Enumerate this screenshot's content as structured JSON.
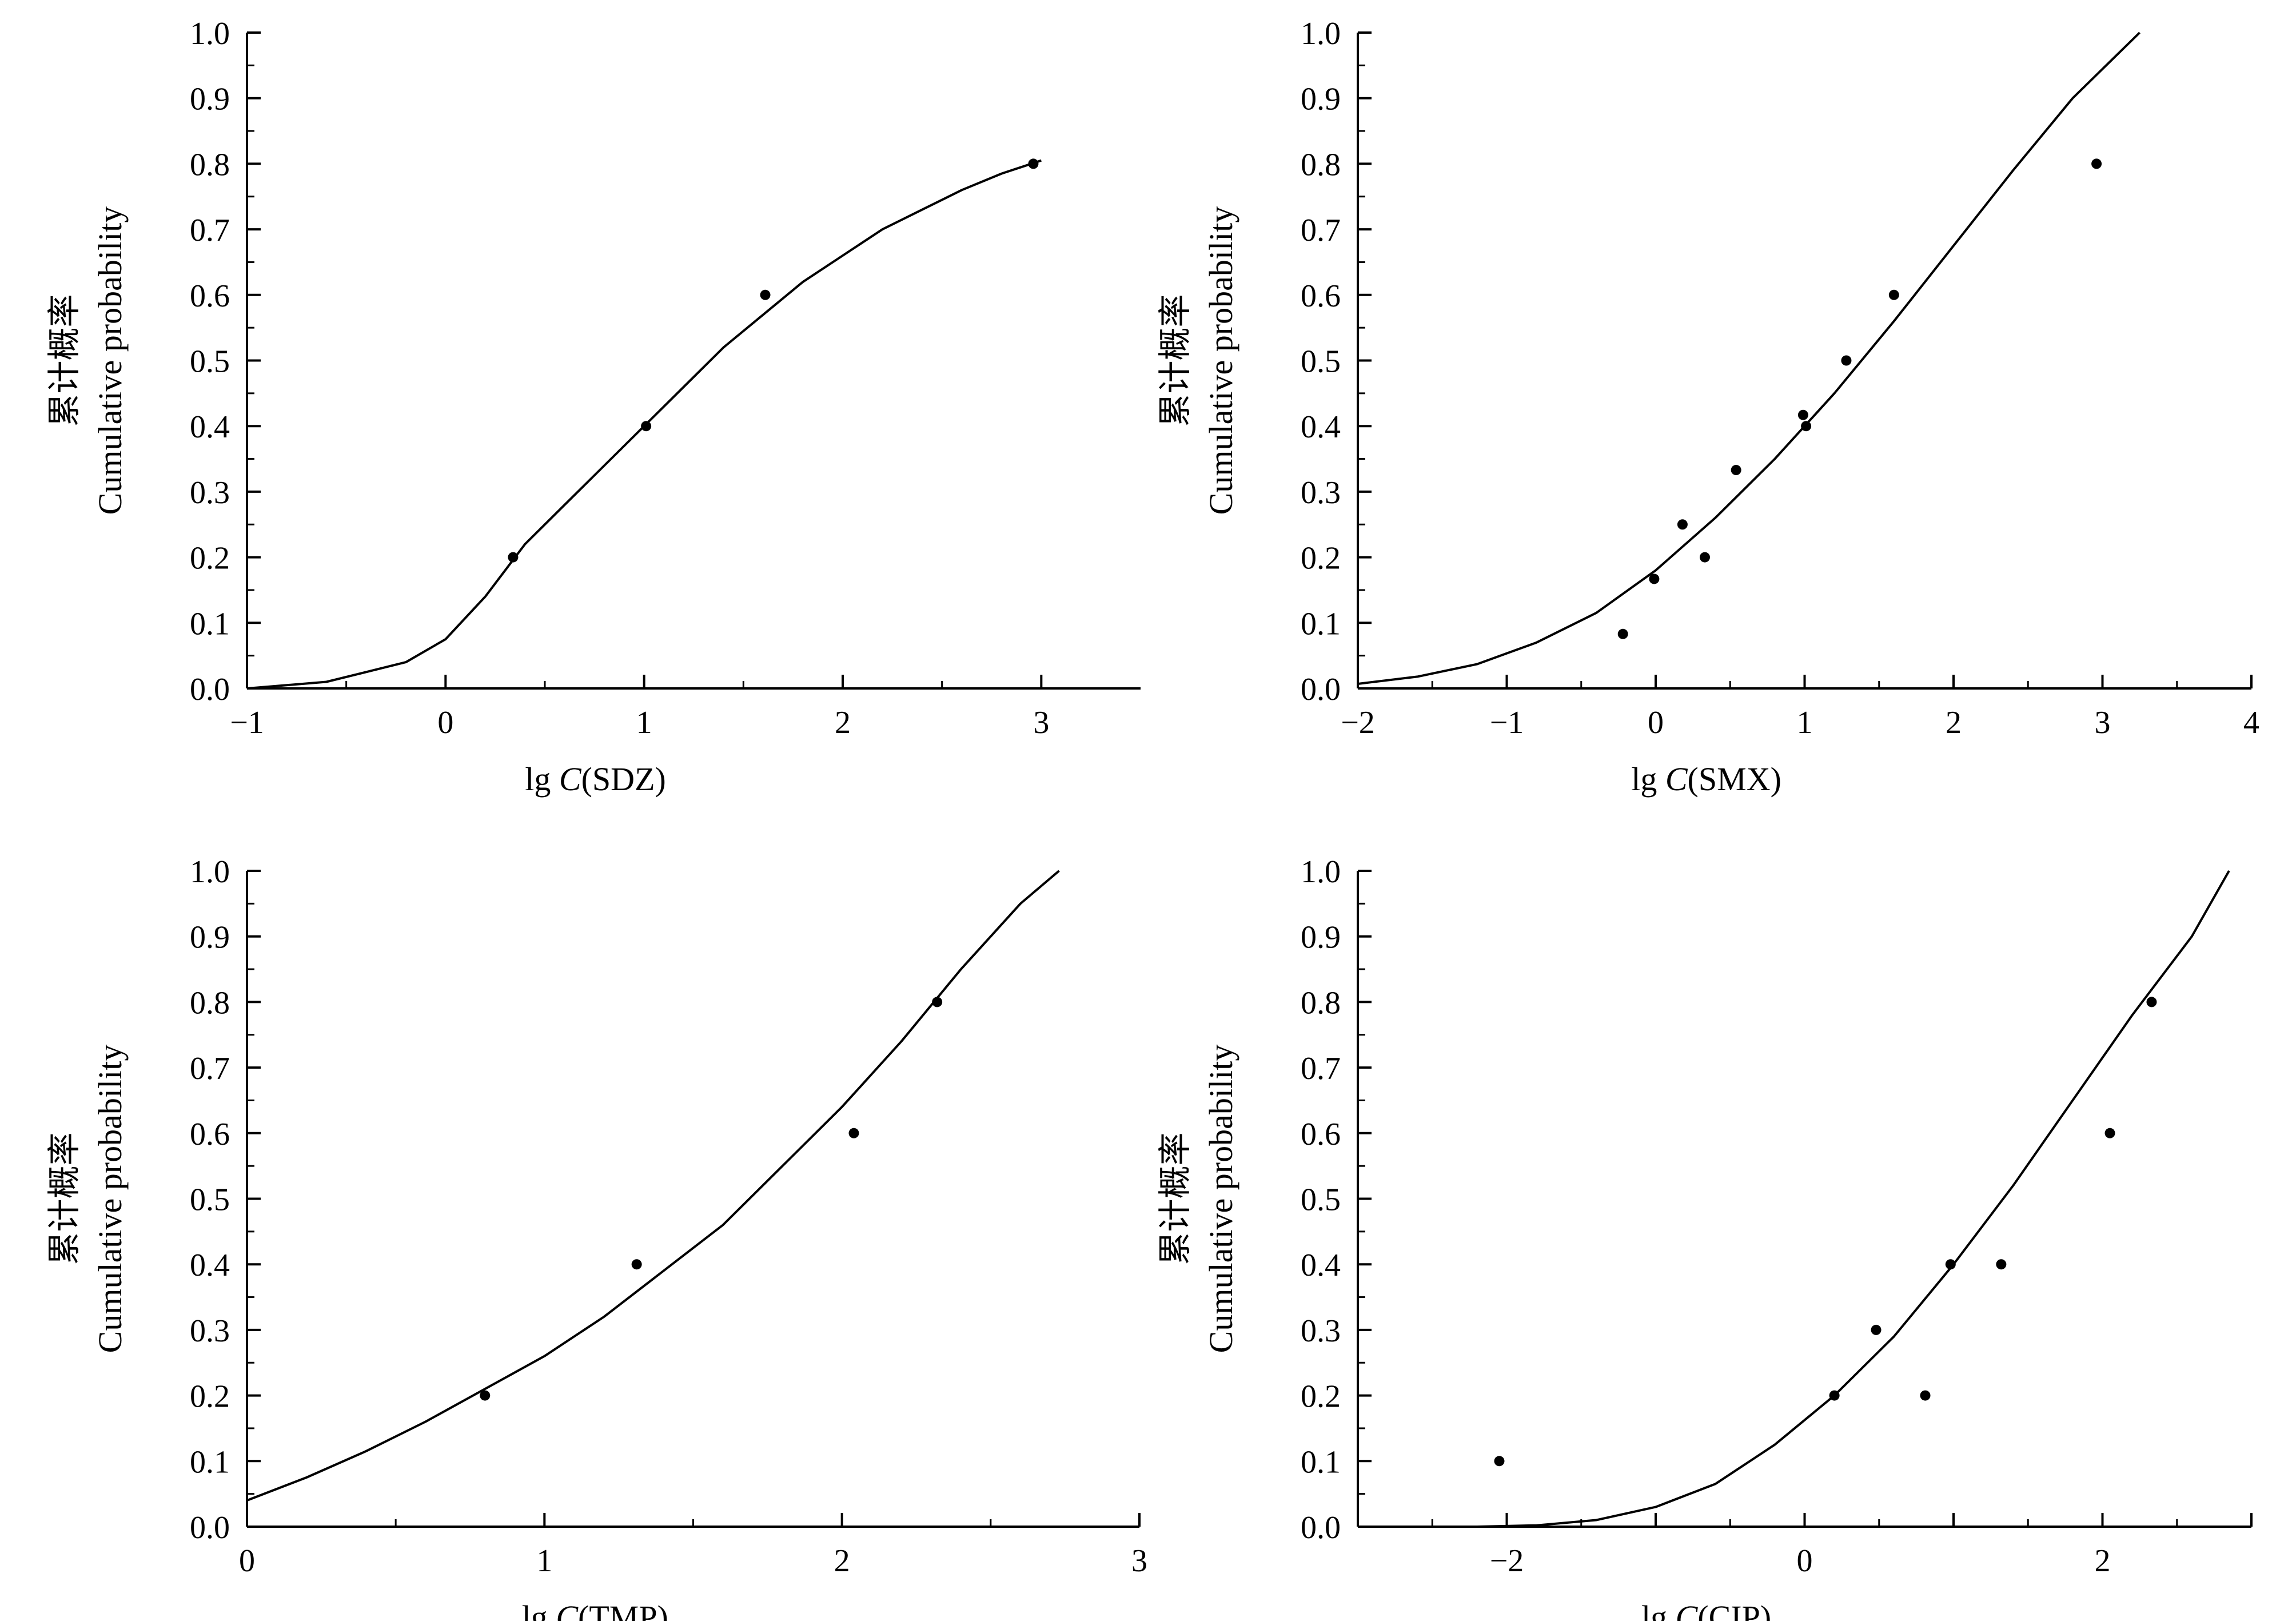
{
  "chart_data": [
    {
      "id": "sdz",
      "type": "scatter",
      "xlabel": {
        "prefix": "lg ",
        "var": "C",
        "suffix": "(SDZ)"
      },
      "ylabel": [
        "累计概率",
        "Cumulative probability"
      ],
      "xlim": [
        -1,
        3.5
      ],
      "ylim": [
        0,
        1
      ],
      "xticks": [
        -1,
        0,
        1,
        2,
        3
      ],
      "xtick_labels": [
        "−1",
        "0",
        "1",
        "2",
        "3"
      ],
      "yticks": [
        0,
        0.1,
        0.2,
        0.3,
        0.4,
        0.5,
        0.6,
        0.7,
        0.8,
        0.9,
        1.0
      ],
      "ytick_labels": [
        "0.0",
        "0.1",
        "0.2",
        "0.3",
        "0.4",
        "0.5",
        "0.6",
        "0.7",
        "0.8",
        "0.9",
        "1.0"
      ],
      "points": [
        [
          0.34,
          0.2
        ],
        [
          1.01,
          0.4
        ],
        [
          1.61,
          0.6
        ],
        [
          2.96,
          0.8
        ]
      ],
      "fit_curve": [
        [
          -1.0,
          0.0
        ],
        [
          -0.6,
          0.01
        ],
        [
          -0.2,
          0.04
        ],
        [
          0.0,
          0.075
        ],
        [
          0.2,
          0.14
        ],
        [
          0.4,
          0.22
        ],
        [
          0.6,
          0.28
        ],
        [
          0.8,
          0.34
        ],
        [
          1.0,
          0.4
        ],
        [
          1.2,
          0.46
        ],
        [
          1.4,
          0.52
        ],
        [
          1.6,
          0.57
        ],
        [
          1.8,
          0.62
        ],
        [
          2.0,
          0.66
        ],
        [
          2.2,
          0.7
        ],
        [
          2.4,
          0.73
        ],
        [
          2.6,
          0.76
        ],
        [
          2.8,
          0.785
        ],
        [
          3.0,
          0.805
        ]
      ]
    },
    {
      "id": "smx",
      "type": "scatter",
      "xlabel": {
        "prefix": "lg ",
        "var": "C",
        "suffix": "(SMX)"
      },
      "ylabel": [
        "累计概率",
        "Cumulative probability"
      ],
      "xlim": [
        -2,
        4
      ],
      "ylim": [
        0,
        1
      ],
      "xticks": [
        -2,
        -1,
        0,
        1,
        2,
        3,
        4
      ],
      "xtick_labels": [
        "−2",
        "−1",
        "0",
        "1",
        "2",
        "3",
        "4"
      ],
      "yticks": [
        0,
        0.1,
        0.2,
        0.3,
        0.4,
        0.5,
        0.6,
        0.7,
        0.8,
        0.9,
        1.0
      ],
      "ytick_labels": [
        "0.0",
        "0.1",
        "0.2",
        "0.3",
        "0.4",
        "0.5",
        "0.6",
        "0.7",
        "0.8",
        "0.9",
        "1.0"
      ],
      "points": [
        [
          -0.22,
          0.083
        ],
        [
          -0.01,
          0.167
        ],
        [
          0.18,
          0.25
        ],
        [
          0.33,
          0.2
        ],
        [
          0.54,
          0.333
        ],
        [
          0.99,
          0.417
        ],
        [
          1.01,
          0.4
        ],
        [
          1.28,
          0.5
        ],
        [
          1.6,
          0.6
        ],
        [
          2.96,
          0.8
        ]
      ],
      "fit_curve": [
        [
          -2.0,
          0.007
        ],
        [
          -1.6,
          0.018
        ],
        [
          -1.2,
          0.037
        ],
        [
          -0.8,
          0.07
        ],
        [
          -0.4,
          0.115
        ],
        [
          0.0,
          0.18
        ],
        [
          0.4,
          0.26
        ],
        [
          0.8,
          0.35
        ],
        [
          1.2,
          0.45
        ],
        [
          1.6,
          0.56
        ],
        [
          2.0,
          0.675
        ],
        [
          2.4,
          0.79
        ],
        [
          2.8,
          0.9
        ],
        [
          3.25,
          1.0
        ]
      ]
    },
    {
      "id": "tmp",
      "type": "scatter",
      "xlabel": {
        "prefix": "lg ",
        "var": "C",
        "suffix": "(TMP)"
      },
      "ylabel": [
        "累计概率",
        "Cumulative probability"
      ],
      "xlim": [
        0,
        3
      ],
      "ylim": [
        0,
        1
      ],
      "xticks": [
        0,
        1,
        2,
        3
      ],
      "xtick_labels": [
        "0",
        "1",
        "2",
        "3"
      ],
      "yticks": [
        0,
        0.1,
        0.2,
        0.3,
        0.4,
        0.5,
        0.6,
        0.7,
        0.8,
        0.9,
        1.0
      ],
      "ytick_labels": [
        "0.0",
        "0.1",
        "0.2",
        "0.3",
        "0.4",
        "0.5",
        "0.6",
        "0.7",
        "0.8",
        "0.9",
        "1.0"
      ],
      "points": [
        [
          0.8,
          0.2
        ],
        [
          1.31,
          0.4
        ],
        [
          2.04,
          0.6
        ],
        [
          2.32,
          0.8
        ]
      ],
      "fit_curve": [
        [
          0.0,
          0.04
        ],
        [
          0.2,
          0.075
        ],
        [
          0.4,
          0.115
        ],
        [
          0.6,
          0.16
        ],
        [
          0.8,
          0.21
        ],
        [
          1.0,
          0.26
        ],
        [
          1.2,
          0.32
        ],
        [
          1.4,
          0.39
        ],
        [
          1.6,
          0.46
        ],
        [
          1.8,
          0.55
        ],
        [
          2.0,
          0.64
        ],
        [
          2.2,
          0.74
        ],
        [
          2.4,
          0.85
        ],
        [
          2.6,
          0.95
        ],
        [
          2.73,
          1.0
        ]
      ]
    },
    {
      "id": "cip",
      "type": "scatter",
      "xlabel": {
        "prefix": "lg ",
        "var": "C",
        "suffix": "(CIP)"
      },
      "ylabel": [
        "累计概率",
        "Cumulative probability"
      ],
      "xlim": [
        -3,
        3
      ],
      "ylim": [
        0,
        1
      ],
      "xticks": [
        -3,
        -2,
        -1,
        0,
        1,
        2,
        3
      ],
      "xtick_labels": [
        "",
        "−2",
        "",
        "0",
        "",
        "2",
        ""
      ],
      "yticks": [
        0,
        0.1,
        0.2,
        0.3,
        0.4,
        0.5,
        0.6,
        0.7,
        0.8,
        0.9,
        1.0
      ],
      "ytick_labels": [
        "0.0",
        "0.1",
        "0.2",
        "0.3",
        "0.4",
        "0.5",
        "0.6",
        "0.7",
        "0.8",
        "0.9",
        "1.0"
      ],
      "points": [
        [
          -2.05,
          0.1
        ],
        [
          0.2,
          0.2
        ],
        [
          0.48,
          0.3
        ],
        [
          0.81,
          0.2
        ],
        [
          0.98,
          0.4
        ],
        [
          1.32,
          0.4
        ],
        [
          2.05,
          0.6
        ],
        [
          2.33,
          0.8
        ]
      ],
      "fit_curve": [
        [
          -2.2,
          0.0
        ],
        [
          -1.8,
          0.002
        ],
        [
          -1.4,
          0.01
        ],
        [
          -1.0,
          0.03
        ],
        [
          -0.6,
          0.065
        ],
        [
          -0.2,
          0.125
        ],
        [
          0.2,
          0.2
        ],
        [
          0.6,
          0.29
        ],
        [
          1.0,
          0.4
        ],
        [
          1.4,
          0.52
        ],
        [
          1.8,
          0.65
        ],
        [
          2.2,
          0.78
        ],
        [
          2.6,
          0.9
        ],
        [
          2.85,
          1.0
        ]
      ]
    }
  ]
}
